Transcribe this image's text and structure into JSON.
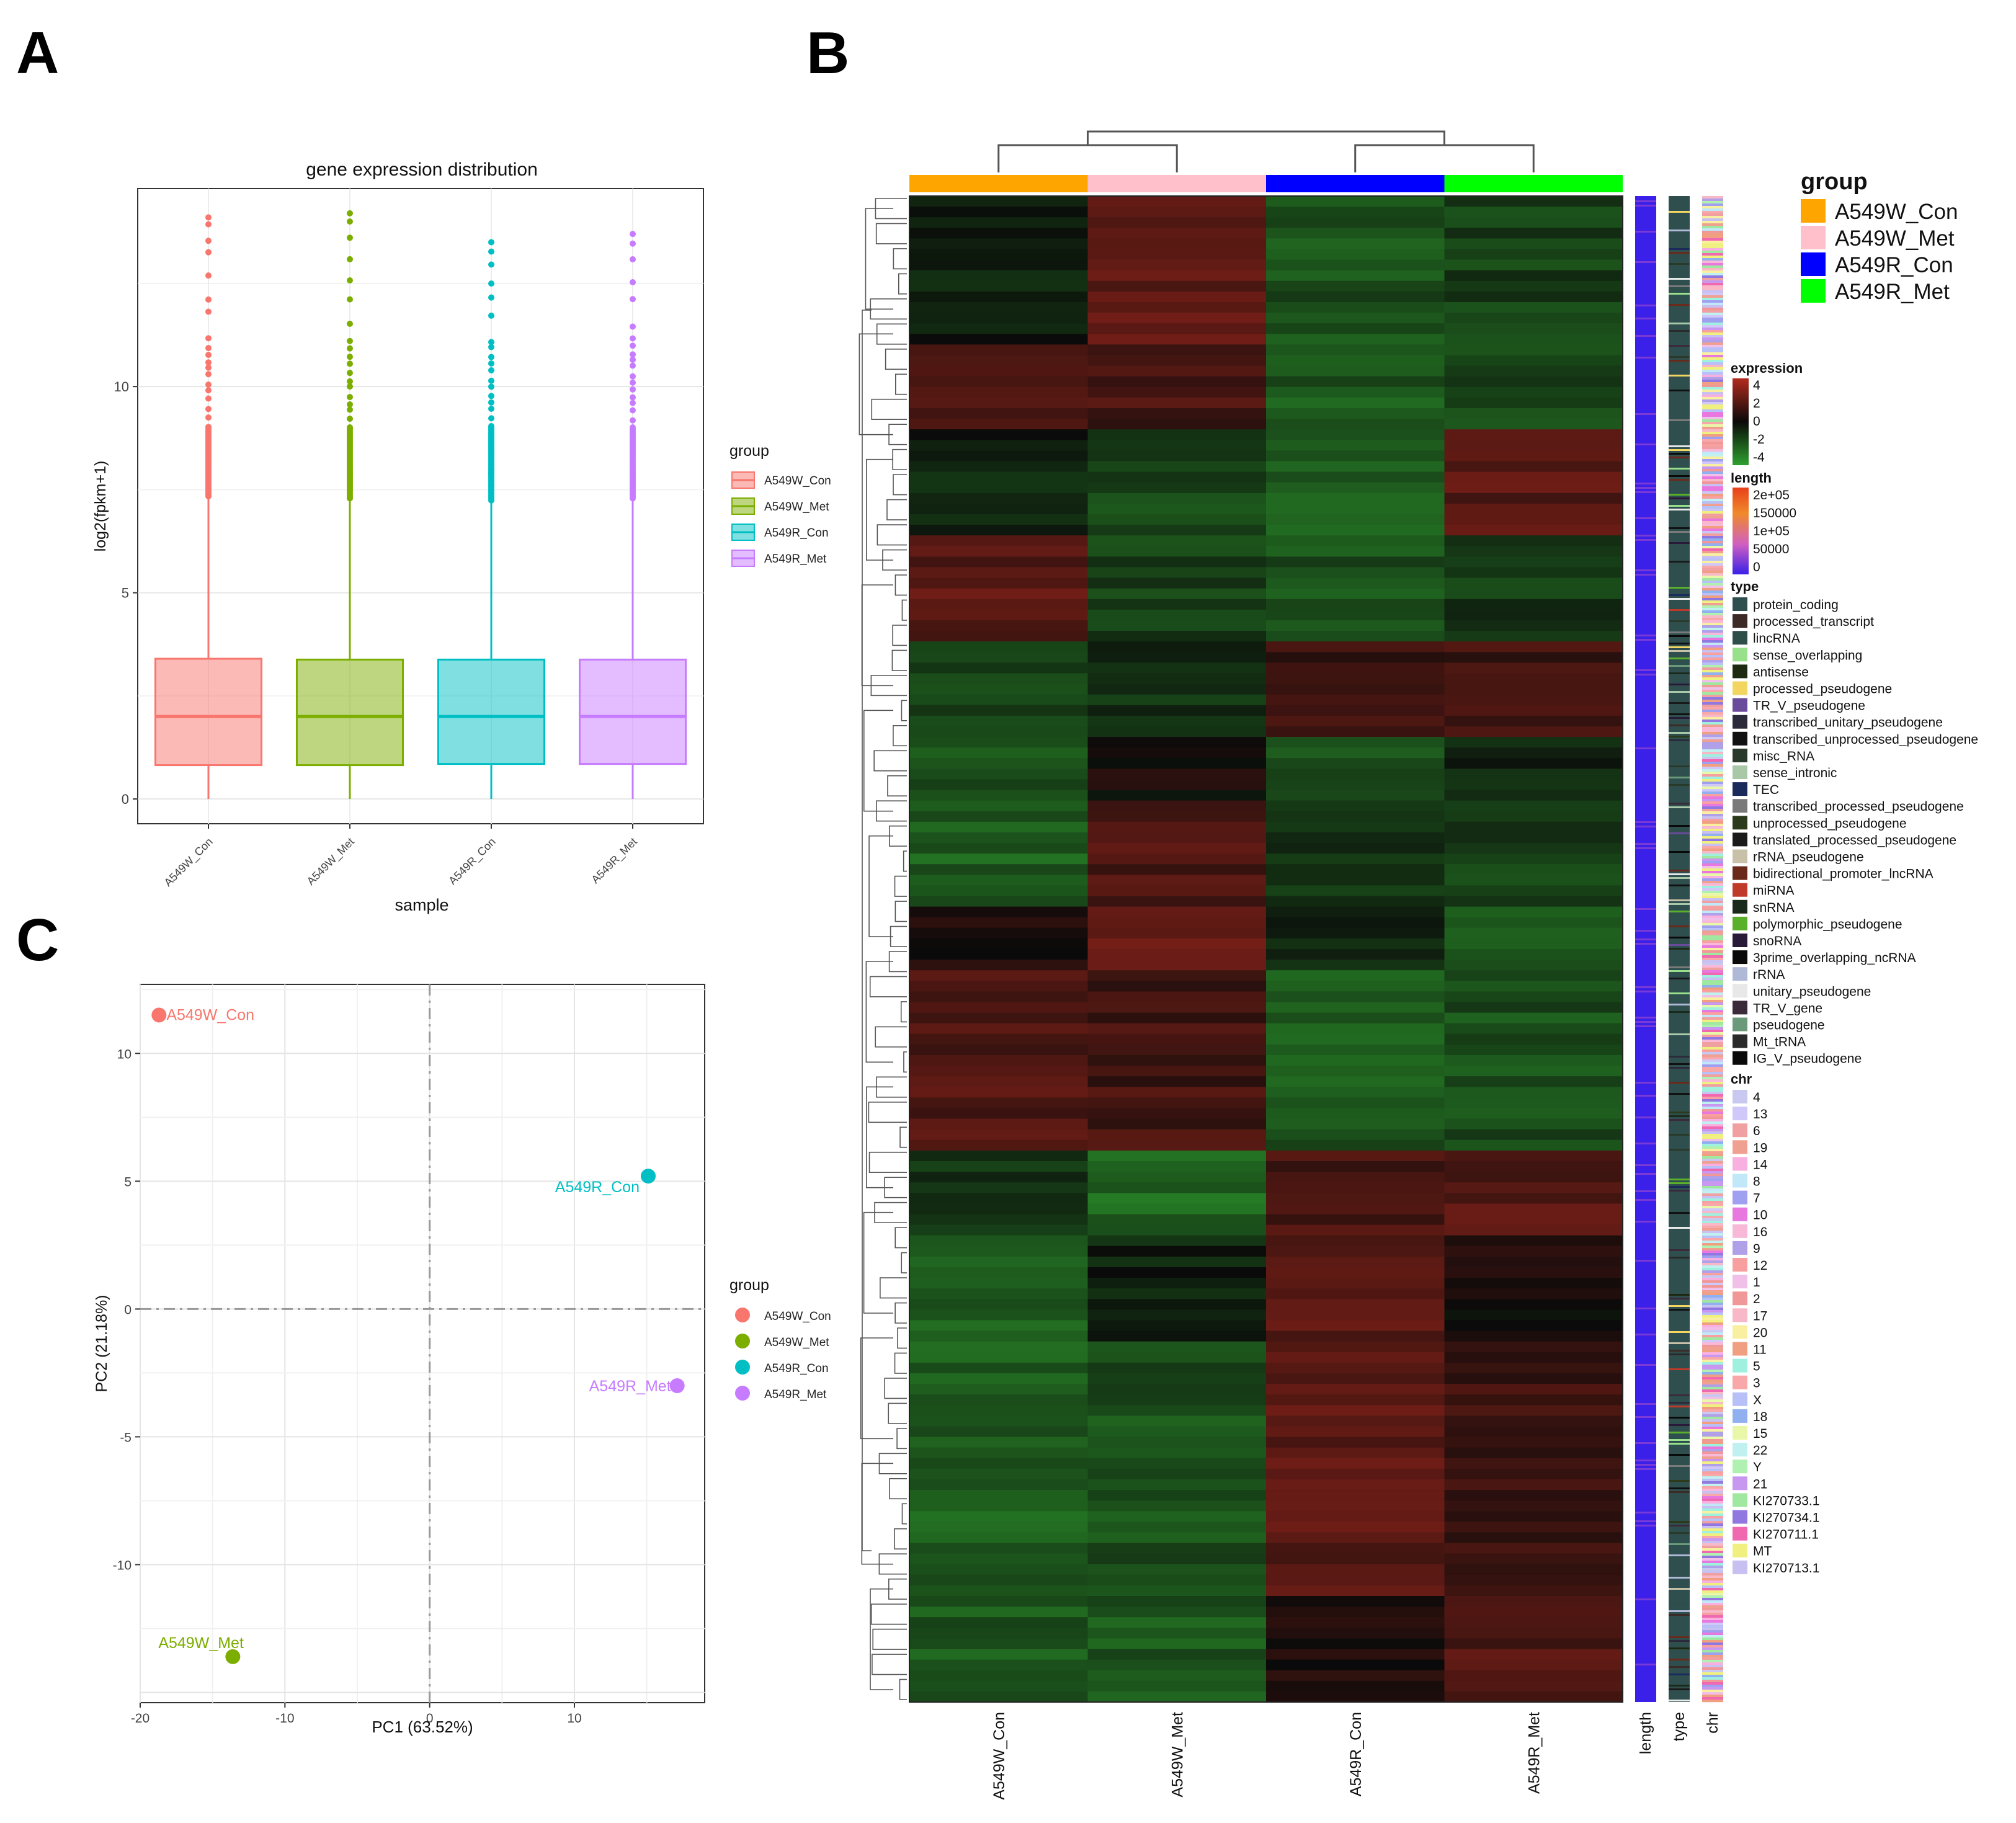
{
  "panel_labels": {
    "a": "A",
    "b": "B",
    "c": "C"
  },
  "palette": {
    "A549W_Con_light": "#F8766D",
    "A549W_Met_light": "#7CAE00",
    "A549R_Con_light": "#00BFC4",
    "A549R_Met_light": "#C77CFF",
    "heat_orange": "#FFA500",
    "heat_pink": "#FFC0CB",
    "heat_blue": "#0000FF",
    "heat_green": "#00FF00",
    "expr_high": "#B22A1E",
    "expr_mid": "#0A0A0A",
    "expr_low": "#2EA02E"
  },
  "chart_data": [
    {
      "id": "A",
      "type": "box",
      "title": "gene expression distribution",
      "xlabel": "sample",
      "ylabel": "log2(fpkm+1)",
      "ylim": [
        -0.6,
        14.8
      ],
      "yticks": [
        0,
        5,
        10
      ],
      "categories": [
        "A549W_Con",
        "A549W_Met",
        "A549R_Con",
        "A549R_Met"
      ],
      "boxes": [
        {
          "name": "A549W_Con",
          "min": 0,
          "q1": 0.82,
          "median": 2.0,
          "q3": 3.4,
          "whisker_high": 7.3,
          "outliers_max": 14.1
        },
        {
          "name": "A549W_Met",
          "min": 0,
          "q1": 0.82,
          "median": 2.0,
          "q3": 3.38,
          "whisker_high": 7.25,
          "outliers_max": 14.2
        },
        {
          "name": "A549R_Con",
          "min": 0,
          "q1": 0.85,
          "median": 2.0,
          "q3": 3.38,
          "whisker_high": 7.2,
          "outliers_max": 13.5
        },
        {
          "name": "A549R_Met",
          "min": 0,
          "q1": 0.85,
          "median": 2.0,
          "q3": 3.38,
          "whisker_high": 7.25,
          "outliers_max": 13.7
        }
      ],
      "legend": {
        "title": "group",
        "entries": [
          "A549W_Con",
          "A549W_Met",
          "A549R_Con",
          "A549R_Met"
        ],
        "placement": "right"
      }
    },
    {
      "id": "B",
      "type": "heatmap",
      "columns": [
        "A549W_Con",
        "A549W_Met",
        "A549R_Con",
        "A549R_Met"
      ],
      "annotation_columns": [
        "length",
        "type",
        "chr"
      ],
      "group_legend": {
        "title": "group",
        "entries": [
          {
            "label": "A549W_Con",
            "color": "#FFA500"
          },
          {
            "label": "A549W_Met",
            "color": "#FFC0CB"
          },
          {
            "label": "A549R_Con",
            "color": "#0000FF"
          },
          {
            "label": "A549R_Met",
            "color": "#00FF00"
          }
        ]
      },
      "expression_legend": {
        "title": "expression",
        "ticks": [
          "4",
          "2",
          "0",
          "-2",
          "-4"
        ]
      },
      "length_legend": {
        "title": "length",
        "ticks": [
          "2e+05",
          "150000",
          "1e+05",
          "50000",
          "0"
        ]
      },
      "type_legend": {
        "title": "type",
        "entries": [
          {
            "label": "protein_coding",
            "color": "#2F4F4F"
          },
          {
            "label": "processed_transcript",
            "color": "#3B2A25"
          },
          {
            "label": "lincRNA",
            "color": "#2E4E4A"
          },
          {
            "label": "sense_overlapping",
            "color": "#98E08A"
          },
          {
            "label": "antisense",
            "color": "#1E2A10"
          },
          {
            "label": "processed_pseudogene",
            "color": "#F2D660"
          },
          {
            "label": "TR_V_pseudogene",
            "color": "#6A4A9A"
          },
          {
            "label": "transcribed_unitary_pseudogene",
            "color": "#2A2A3A"
          },
          {
            "label": "transcribed_unprocessed_pseudogene",
            "color": "#111111"
          },
          {
            "label": "misc_RNA",
            "color": "#2A3A2A"
          },
          {
            "label": "sense_intronic",
            "color": "#A8C8A8"
          },
          {
            "label": "TEC",
            "color": "#1A2A5A"
          },
          {
            "label": "transcribed_processed_pseudogene",
            "color": "#7A7A7A"
          },
          {
            "label": "unprocessed_pseudogene",
            "color": "#2A3A1A"
          },
          {
            "label": "translated_processed_pseudogene",
            "color": "#1A1A1A"
          },
          {
            "label": "rRNA_pseudogene",
            "color": "#C8C0A8"
          },
          {
            "label": "bidirectional_promoter_lncRNA",
            "color": "#6A2A1A"
          },
          {
            "label": "miRNA",
            "color": "#C03A2A"
          },
          {
            "label": "snRNA",
            "color": "#1A2A1A"
          },
          {
            "label": "polymorphic_pseudogene",
            "color": "#5AB02A"
          },
          {
            "label": "snoRNA",
            "color": "#2A1A3A"
          },
          {
            "label": "3prime_overlapping_ncRNA",
            "color": "#0A0A0A"
          },
          {
            "label": "rRNA",
            "color": "#B0B8D8"
          },
          {
            "label": "unitary_pseudogene",
            "color": "#E8E8E8"
          },
          {
            "label": "TR_V_gene",
            "color": "#3A2A3A"
          },
          {
            "label": "pseudogene",
            "color": "#6A9A7A"
          },
          {
            "label": "Mt_tRNA",
            "color": "#2A2A2A"
          },
          {
            "label": "IG_V_pseudogene",
            "color": "#0A0A0A"
          }
        ]
      },
      "chr_legend": {
        "title": "chr",
        "entries": [
          {
            "label": "4",
            "color": "#C8C8F0"
          },
          {
            "label": "13",
            "color": "#D0C8F8"
          },
          {
            "label": "6",
            "color": "#F0A0A0"
          },
          {
            "label": "19",
            "color": "#F0A090"
          },
          {
            "label": "14",
            "color": "#F8B0E0"
          },
          {
            "label": "8",
            "color": "#C0E8F8"
          },
          {
            "label": "7",
            "color": "#A0A0F0"
          },
          {
            "label": "10",
            "color": "#E878E0"
          },
          {
            "label": "16",
            "color": "#F8B8D8"
          },
          {
            "label": "9",
            "color": "#B0A0E8"
          },
          {
            "label": "12",
            "color": "#F8A0A0"
          },
          {
            "label": "1",
            "color": "#F0C0E8"
          },
          {
            "label": "2",
            "color": "#F09898"
          },
          {
            "label": "17",
            "color": "#F8B8C8"
          },
          {
            "label": "20",
            "color": "#F8F0A0"
          },
          {
            "label": "11",
            "color": "#F0A080"
          },
          {
            "label": "5",
            "color": "#A0F0E0"
          },
          {
            "label": "3",
            "color": "#F8A8A8"
          },
          {
            "label": "X",
            "color": "#B8C0F8"
          },
          {
            "label": "18",
            "color": "#90B0F0"
          },
          {
            "label": "15",
            "color": "#E8F8A8"
          },
          {
            "label": "22",
            "color": "#C0F0F0"
          },
          {
            "label": "Y",
            "color": "#B0F0B0"
          },
          {
            "label": "21",
            "color": "#C898F0"
          },
          {
            "label": "KI270733.1",
            "color": "#A0E8A0"
          },
          {
            "label": "KI270734.1",
            "color": "#9078E0"
          },
          {
            "label": "KI270711.1",
            "color": "#F068B0"
          },
          {
            "label": "MT",
            "color": "#F0F080"
          },
          {
            "label": "KI270713.1",
            "color": "#C8C0F0"
          }
        ]
      },
      "row_blocks": [
        {
          "rows": 14,
          "values": [
            -0.5,
            2.0,
            -1.8,
            -1.4
          ]
        },
        {
          "rows": 8,
          "values": [
            1.8,
            1.4,
            -2.0,
            -1.6
          ]
        },
        {
          "rows": 10,
          "values": [
            -0.6,
            -1.6,
            -2.2,
            1.8
          ]
        },
        {
          "rows": 10,
          "values": [
            1.9,
            -1.4,
            -1.8,
            -1.2
          ]
        },
        {
          "rows": 9,
          "values": [
            -1.4,
            -1.0,
            1.0,
            1.2
          ]
        },
        {
          "rows": 6,
          "values": [
            -2.0,
            0.2,
            -1.8,
            -0.6
          ]
        },
        {
          "rows": 10,
          "values": [
            -2.2,
            1.6,
            -1.0,
            -1.4
          ]
        },
        {
          "rows": 6,
          "values": [
            0.4,
            2.0,
            -0.5,
            -2.2
          ]
        },
        {
          "rows": 17,
          "values": [
            1.7,
            1.3,
            -2.0,
            -1.8
          ]
        },
        {
          "rows": 8,
          "values": [
            -1.0,
            -2.4,
            1.4,
            1.8
          ]
        },
        {
          "rows": 10,
          "values": [
            -2.2,
            -0.6,
            1.8,
            0.3
          ]
        },
        {
          "rows": 24,
          "values": [
            -2.2,
            -1.8,
            1.8,
            1.2
          ]
        },
        {
          "rows": 10,
          "values": [
            -2.0,
            -2.0,
            0.3,
            1.6
          ]
        }
      ]
    },
    {
      "id": "C",
      "type": "scatter",
      "xlabel": "PC1 (63.52%)",
      "ylabel": "PC2 (21.18%)",
      "xlim": [
        -20,
        19
      ],
      "ylim": [
        -15.4,
        12.7
      ],
      "xticks": [
        -20,
        -10,
        0,
        10
      ],
      "yticks": [
        -10,
        -5,
        0,
        5,
        10
      ],
      "points": [
        {
          "label": "A549W_Con",
          "x": -18.7,
          "y": 11.5
        },
        {
          "label": "A549R_Con",
          "x": 15.1,
          "y": 5.2
        },
        {
          "label": "A549R_Met",
          "x": 17.1,
          "y": -3.0
        },
        {
          "label": "A549W_Met",
          "x": -13.6,
          "y": -13.6
        }
      ],
      "legend": {
        "title": "group",
        "entries": [
          "A549W_Con",
          "A549W_Met",
          "A549R_Con",
          "A549R_Met"
        ],
        "placement": "right"
      }
    }
  ]
}
